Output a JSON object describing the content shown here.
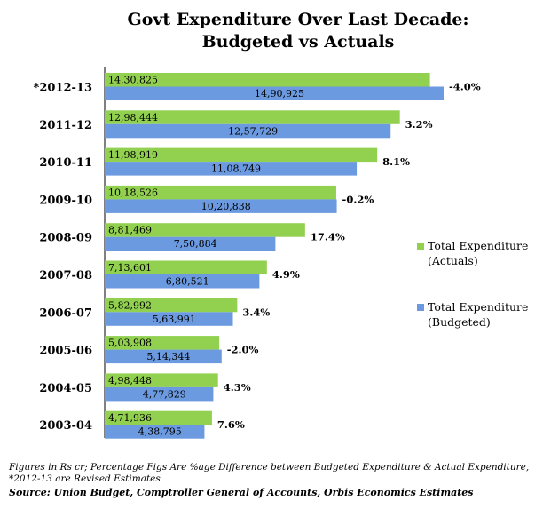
{
  "chart_data": {
    "type": "bar",
    "orientation": "horizontal",
    "title_line1": "Govt Expenditure Over Last Decade:",
    "title_line2": "Budgeted vs Actuals",
    "categories": [
      "*2012-13",
      "2011-12",
      "2010-11",
      "2009-10",
      "2008-09",
      "2007-08",
      "2006-07",
      "2005-06",
      "2004-05",
      "2003-04"
    ],
    "series": [
      {
        "name_line1": "Total Expenditure",
        "name_line2": "(Actuals)",
        "color": "#92D050",
        "values": [
          1430825,
          1298444,
          1198919,
          1018526,
          881469,
          713601,
          582992,
          503908,
          498448,
          471936
        ],
        "labels": [
          "14,30,825",
          "12,98,444",
          "11,98,919",
          "10,18,526",
          "8,81,469",
          "7,13,601",
          "5,82,992",
          "5,03,908",
          "4,98,448",
          "4,71,936"
        ]
      },
      {
        "name_line1": "Total Expenditure",
        "name_line2": "(Budgeted)",
        "color": "#6B9AE0",
        "values": [
          1490925,
          1257729,
          1108749,
          1020838,
          750884,
          680521,
          563991,
          514344,
          477829,
          438795
        ],
        "labels": [
          "14,90,925",
          "12,57,729",
          "11,08,749",
          "10,20,838",
          "7,50,884",
          "6,80,521",
          "5,63,991",
          "5,14,344",
          "4,77,829",
          "4,38,795"
        ]
      }
    ],
    "pct_diff": [
      "-4.0%",
      "3.2%",
      "8.1%",
      "-0.2%",
      "17.4%",
      "4.9%",
      "3.4%",
      "-2.0%",
      "4.3%",
      "7.6%"
    ],
    "legend_position": "right",
    "grid": false
  },
  "footnote": {
    "line1": "Figures in Rs cr; Percentage Figs Are %age Difference between Budgeted Expenditure & Actual Expenditure,",
    "line2": "*2012-13 are Revised Estimates"
  },
  "source": "Source: Union Budget, Comptroller General of Accounts, Orbis Economics Estimates"
}
